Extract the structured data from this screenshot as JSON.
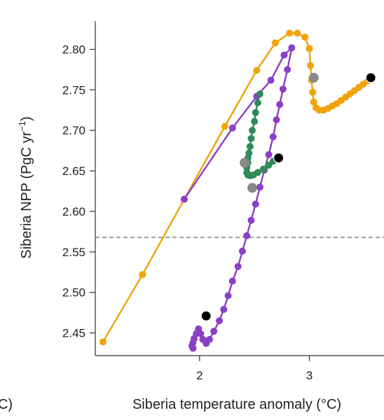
{
  "chart_data": {
    "type": "line",
    "title": "",
    "xlabel": "Siberia temperature anomaly (°C)",
    "ylabel_main": "Siberia NPP (PgC yr",
    "ylabel_sup": "−1",
    "ylabel_close": ")",
    "left_fragment": "C)",
    "xlim": [
      1.05,
      3.68
    ],
    "ylim": [
      2.422,
      2.835
    ],
    "x_ticks": [
      {
        "value": 2,
        "label": "2"
      },
      {
        "value": 3,
        "label": "3"
      }
    ],
    "y_ticks": [
      {
        "value": 2.45,
        "label": "2.45"
      },
      {
        "value": 2.5,
        "label": "2.50"
      },
      {
        "value": 2.55,
        "label": "2.55"
      },
      {
        "value": 2.6,
        "label": "2.60"
      },
      {
        "value": 2.65,
        "label": "2.65"
      },
      {
        "value": 2.7,
        "label": "2.70"
      },
      {
        "value": 2.75,
        "label": "2.75"
      },
      {
        "value": 2.8,
        "label": "2.80"
      }
    ],
    "reference_line": {
      "y": 2.568,
      "style": "dashed",
      "color": "#888888"
    },
    "series": [
      {
        "color": "#f0a30a",
        "x": [
          1.12,
          1.48,
          1.86,
          2.23,
          2.52,
          2.69,
          2.82,
          2.89,
          2.96,
          3.0,
          3.01,
          3.02,
          3.03,
          3.04,
          3.06,
          3.09,
          3.13,
          3.17,
          3.21,
          3.25,
          3.29,
          3.33,
          3.37,
          3.41,
          3.45,
          3.49,
          3.53,
          3.56
        ],
        "y": [
          2.439,
          2.522,
          2.615,
          2.705,
          2.774,
          2.808,
          2.82,
          2.82,
          2.815,
          2.801,
          2.78,
          2.762,
          2.747,
          2.735,
          2.728,
          2.725,
          2.725,
          2.727,
          2.73,
          2.733,
          2.737,
          2.741,
          2.745,
          2.749,
          2.753,
          2.757,
          2.761,
          2.765
        ]
      },
      {
        "color": "#8b3fc6",
        "x": [
          1.86,
          2.3,
          2.52,
          2.65,
          2.77,
          2.84,
          2.8,
          2.76,
          2.73,
          2.7,
          2.67,
          2.63,
          2.59,
          2.55,
          2.51,
          2.47,
          2.43,
          2.39,
          2.35,
          2.3,
          2.26,
          2.22,
          2.18,
          2.13,
          2.09,
          2.06,
          2.03,
          2.01,
          1.99,
          1.97,
          1.95,
          1.94,
          1.93,
          1.94
        ],
        "y": [
          2.615,
          2.703,
          2.742,
          2.762,
          2.793,
          2.802,
          2.775,
          2.751,
          2.732,
          2.713,
          2.692,
          2.67,
          2.651,
          2.63,
          2.609,
          2.589,
          2.57,
          2.551,
          2.532,
          2.514,
          2.496,
          2.479,
          2.465,
          2.452,
          2.442,
          2.437,
          2.442,
          2.449,
          2.455,
          2.449,
          2.443,
          2.438,
          2.434,
          2.431
        ]
      },
      {
        "color": "#2e8b57",
        "x": [
          2.55,
          2.53,
          2.51,
          2.5,
          2.48,
          2.47,
          2.46,
          2.45,
          2.44,
          2.44,
          2.43,
          2.43,
          2.44,
          2.46,
          2.49,
          2.53,
          2.58,
          2.63,
          2.67
        ],
        "y": [
          2.745,
          2.734,
          2.722,
          2.711,
          2.7,
          2.69,
          2.68,
          2.672,
          2.666,
          2.66,
          2.654,
          2.648,
          2.645,
          2.644,
          2.645,
          2.648,
          2.652,
          2.657,
          2.662
        ]
      }
    ],
    "gray_markers": {
      "color": "#888888",
      "x": [
        3.04,
        2.41,
        2.48
      ],
      "y": [
        2.765,
        2.66,
        2.629
      ]
    },
    "black_markers": {
      "color": "#000000",
      "x": [
        3.56,
        2.72,
        2.06
      ],
      "y": [
        2.765,
        2.666,
        2.471
      ]
    }
  }
}
